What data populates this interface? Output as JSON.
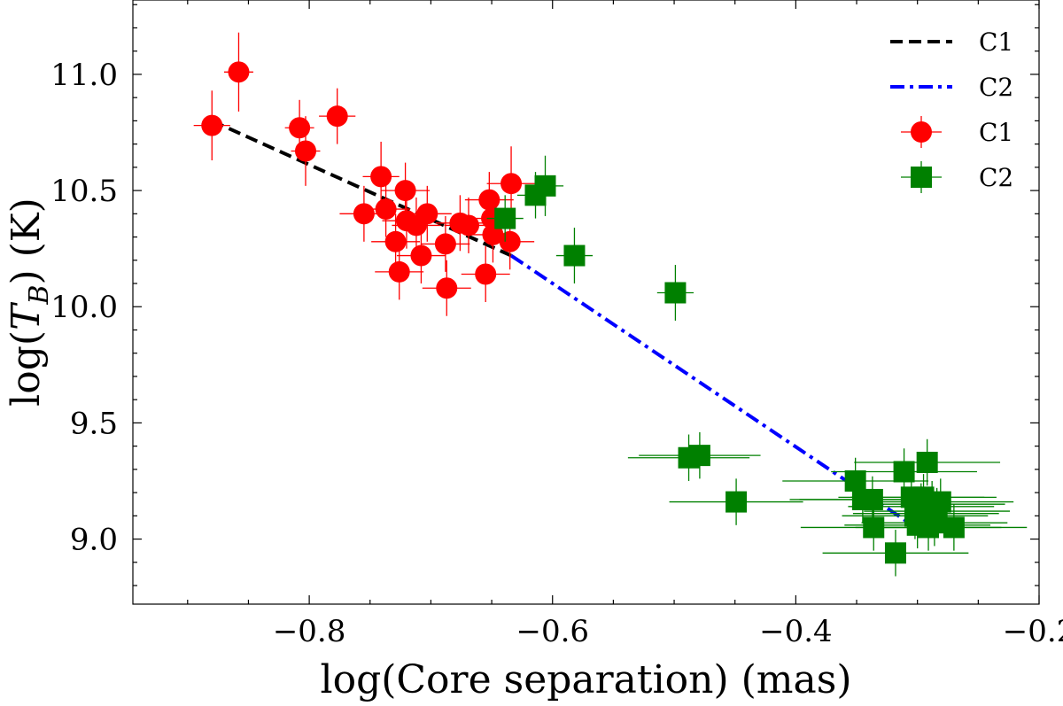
{
  "chart_data": {
    "type": "scatter",
    "xlabel": "log(Core separation) (mas)",
    "ylabel_prefix": "log(",
    "ylabel_var": "T",
    "ylabel_sub": "B",
    "ylabel_suffix": ") (K)",
    "xlim": [
      -0.945,
      -0.2
    ],
    "ylim": [
      8.72,
      11.32
    ],
    "xticks": [
      -0.8,
      -0.6,
      -0.4,
      -0.2
    ],
    "xtick_labels": [
      "−0.8",
      "−0.6",
      "−0.4",
      "−0.2"
    ],
    "yticks": [
      9.0,
      9.5,
      10.0,
      10.5,
      11.0
    ],
    "ytick_labels": [
      "9.0",
      "9.5",
      "10.0",
      "10.5",
      "11.0"
    ],
    "legend_position": "top-right",
    "series": [
      {
        "name": "C1",
        "kind": "points",
        "marker": "circle",
        "color": "#ff0000",
        "points": [
          {
            "x": -0.88,
            "y": 10.78,
            "xerr": 0.015,
            "yerr": 0.15
          },
          {
            "x": -0.858,
            "y": 11.01,
            "xerr": 0.012,
            "yerr": 0.17
          },
          {
            "x": -0.808,
            "y": 10.77,
            "xerr": 0.012,
            "yerr": 0.12
          },
          {
            "x": -0.803,
            "y": 10.67,
            "xerr": 0.012,
            "yerr": 0.15
          },
          {
            "x": -0.777,
            "y": 10.82,
            "xerr": 0.015,
            "yerr": 0.12
          },
          {
            "x": -0.755,
            "y": 10.4,
            "xerr": 0.02,
            "yerr": 0.12
          },
          {
            "x": -0.741,
            "y": 10.56,
            "xerr": 0.015,
            "yerr": 0.15
          },
          {
            "x": -0.737,
            "y": 10.42,
            "xerr": 0.02,
            "yerr": 0.12
          },
          {
            "x": -0.729,
            "y": 10.28,
            "xerr": 0.02,
            "yerr": 0.12
          },
          {
            "x": -0.726,
            "y": 10.15,
            "xerr": 0.02,
            "yerr": 0.12
          },
          {
            "x": -0.721,
            "y": 10.5,
            "xerr": 0.02,
            "yerr": 0.12
          },
          {
            "x": -0.72,
            "y": 10.37,
            "xerr": 0.02,
            "yerr": 0.12
          },
          {
            "x": -0.712,
            "y": 10.35,
            "xerr": 0.02,
            "yerr": 0.12
          },
          {
            "x": -0.708,
            "y": 10.22,
            "xerr": 0.02,
            "yerr": 0.12
          },
          {
            "x": -0.703,
            "y": 10.4,
            "xerr": 0.02,
            "yerr": 0.12
          },
          {
            "x": -0.688,
            "y": 10.27,
            "xerr": 0.02,
            "yerr": 0.12
          },
          {
            "x": -0.687,
            "y": 10.08,
            "xerr": 0.02,
            "yerr": 0.12
          },
          {
            "x": -0.676,
            "y": 10.36,
            "xerr": 0.02,
            "yerr": 0.12
          },
          {
            "x": -0.669,
            "y": 10.35,
            "xerr": 0.02,
            "yerr": 0.12
          },
          {
            "x": -0.655,
            "y": 10.14,
            "xerr": 0.02,
            "yerr": 0.12
          },
          {
            "x": -0.652,
            "y": 10.46,
            "xerr": 0.02,
            "yerr": 0.12
          },
          {
            "x": -0.65,
            "y": 10.38,
            "xerr": 0.02,
            "yerr": 0.12
          },
          {
            "x": -0.649,
            "y": 10.31,
            "xerr": 0.02,
            "yerr": 0.12
          },
          {
            "x": -0.635,
            "y": 10.28,
            "xerr": 0.02,
            "yerr": 0.12
          },
          {
            "x": -0.634,
            "y": 10.53,
            "xerr": 0.02,
            "yerr": 0.16
          }
        ]
      },
      {
        "name": "C2",
        "kind": "points",
        "marker": "square",
        "color": "#008000",
        "points": [
          {
            "x": -0.639,
            "y": 10.38,
            "xerr": 0.015,
            "yerr": 0.1
          },
          {
            "x": -0.614,
            "y": 10.48,
            "xerr": 0.015,
            "yerr": 0.1
          },
          {
            "x": -0.606,
            "y": 10.52,
            "xerr": 0.015,
            "yerr": 0.13
          },
          {
            "x": -0.582,
            "y": 10.22,
            "xerr": 0.015,
            "yerr": 0.12
          },
          {
            "x": -0.499,
            "y": 10.06,
            "xerr": 0.015,
            "yerr": 0.12
          },
          {
            "x": -0.488,
            "y": 9.35,
            "xerr": 0.05,
            "yerr": 0.1
          },
          {
            "x": -0.479,
            "y": 9.36,
            "xerr": 0.05,
            "yerr": 0.1
          },
          {
            "x": -0.449,
            "y": 9.16,
            "xerr": 0.055,
            "yerr": 0.1
          },
          {
            "x": -0.351,
            "y": 9.25,
            "xerr": 0.06,
            "yerr": 0.1
          },
          {
            "x": -0.345,
            "y": 9.17,
            "xerr": 0.06,
            "yerr": 0.1
          },
          {
            "x": -0.337,
            "y": 9.17,
            "xerr": 0.06,
            "yerr": 0.1
          },
          {
            "x": -0.336,
            "y": 9.05,
            "xerr": 0.06,
            "yerr": 0.1
          },
          {
            "x": -0.318,
            "y": 8.94,
            "xerr": 0.06,
            "yerr": 0.1
          },
          {
            "x": -0.311,
            "y": 9.29,
            "xerr": 0.06,
            "yerr": 0.1
          },
          {
            "x": -0.305,
            "y": 9.18,
            "xerr": 0.06,
            "yerr": 0.1
          },
          {
            "x": -0.302,
            "y": 9.1,
            "xerr": 0.06,
            "yerr": 0.1
          },
          {
            "x": -0.3,
            "y": 9.06,
            "xerr": 0.06,
            "yerr": 0.1
          },
          {
            "x": -0.297,
            "y": 9.14,
            "xerr": 0.06,
            "yerr": 0.1
          },
          {
            "x": -0.295,
            "y": 9.18,
            "xerr": 0.06,
            "yerr": 0.1
          },
          {
            "x": -0.293,
            "y": 9.11,
            "xerr": 0.06,
            "yerr": 0.1
          },
          {
            "x": -0.292,
            "y": 9.33,
            "xerr": 0.06,
            "yerr": 0.1
          },
          {
            "x": -0.291,
            "y": 9.05,
            "xerr": 0.06,
            "yerr": 0.1
          },
          {
            "x": -0.288,
            "y": 9.15,
            "xerr": 0.06,
            "yerr": 0.1
          },
          {
            "x": -0.286,
            "y": 9.07,
            "xerr": 0.06,
            "yerr": 0.1
          },
          {
            "x": -0.284,
            "y": 9.12,
            "xerr": 0.06,
            "yerr": 0.1
          },
          {
            "x": -0.281,
            "y": 9.16,
            "xerr": 0.06,
            "yerr": 0.1
          },
          {
            "x": -0.27,
            "y": 9.05,
            "xerr": 0.06,
            "yerr": 0.1
          }
        ]
      },
      {
        "name": "C1",
        "kind": "fit",
        "style": "dashed",
        "color": "#000000",
        "points": [
          {
            "x": -0.88,
            "y": 10.8
          },
          {
            "x": -0.634,
            "y": 10.22
          }
        ]
      },
      {
        "name": "C2",
        "kind": "fit",
        "style": "dashdot",
        "color": "#0000ff",
        "points": [
          {
            "x": -0.634,
            "y": 10.22
          },
          {
            "x": -0.29,
            "y": 9.01
          }
        ]
      }
    ],
    "legend": [
      {
        "label": "C1",
        "kind": "line",
        "style": "dashed",
        "color": "#000000"
      },
      {
        "label": "C2",
        "kind": "line",
        "style": "dashdot",
        "color": "#0000ff"
      },
      {
        "label": "C1",
        "kind": "marker",
        "marker": "circle",
        "color": "#ff0000"
      },
      {
        "label": "C2",
        "kind": "marker",
        "marker": "square",
        "color": "#008000"
      }
    ]
  }
}
